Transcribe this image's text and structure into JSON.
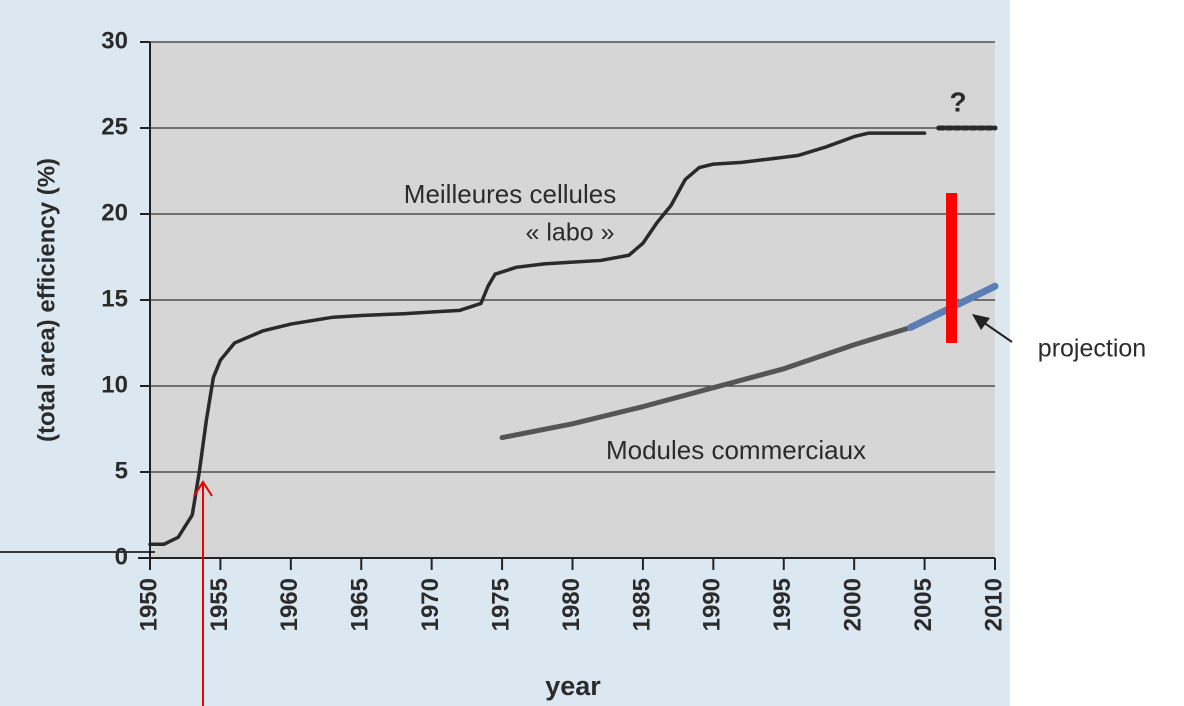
{
  "chart_data": {
    "type": "line",
    "ylabel": "(total area) efficiency (%)",
    "xlabel": "year",
    "xlim": [
      1950,
      2010
    ],
    "ylim": [
      0,
      30
    ],
    "xticks": [
      1950,
      1955,
      1960,
      1965,
      1970,
      1975,
      1980,
      1985,
      1990,
      1995,
      2000,
      2005,
      2010
    ],
    "yticks": [
      0,
      5,
      10,
      15,
      20,
      25,
      30
    ],
    "grid": true,
    "series": [
      {
        "name": "Meilleures cellules",
        "color": "#2a2a2a",
        "x": [
          1950,
          1951,
          1952,
          1953,
          1953.5,
          1954,
          1954.5,
          1955,
          1956,
          1958,
          1960,
          1963,
          1965,
          1968,
          1970,
          1972,
          1973.5,
          1974,
          1974.5,
          1976,
          1978,
          1980,
          1982,
          1984,
          1985,
          1986,
          1987,
          1988,
          1989,
          1990,
          1992,
          1994,
          1996,
          1998,
          2000,
          2001,
          2005
        ],
        "values": [
          0.8,
          0.8,
          1.2,
          2.5,
          5,
          8,
          10.5,
          11.5,
          12.5,
          13.2,
          13.6,
          14,
          14.1,
          14.2,
          14.3,
          14.4,
          14.8,
          15.8,
          16.5,
          16.9,
          17.1,
          17.2,
          17.3,
          17.6,
          18.3,
          19.5,
          20.5,
          22,
          22.7,
          22.9,
          23,
          23.2,
          23.4,
          23.9,
          24.5,
          24.7,
          24.7
        ]
      },
      {
        "name": "?",
        "color": "#2a2a2a",
        "dashed": true,
        "x": [
          2006,
          2010
        ],
        "values": [
          25,
          25
        ]
      },
      {
        "name": "Modules commerciaux",
        "color": "#555555",
        "x": [
          1975,
          1980,
          1985,
          1990,
          1995,
          2000,
          2004
        ],
        "values": [
          7,
          7.8,
          8.8,
          9.9,
          11,
          12.4,
          13.4
        ]
      },
      {
        "name": "projection",
        "color": "#5b7fb5",
        "x": [
          2004,
          2010
        ],
        "values": [
          13.4,
          15.8
        ]
      }
    ],
    "annotations": [
      "« labo »"
    ]
  }
}
